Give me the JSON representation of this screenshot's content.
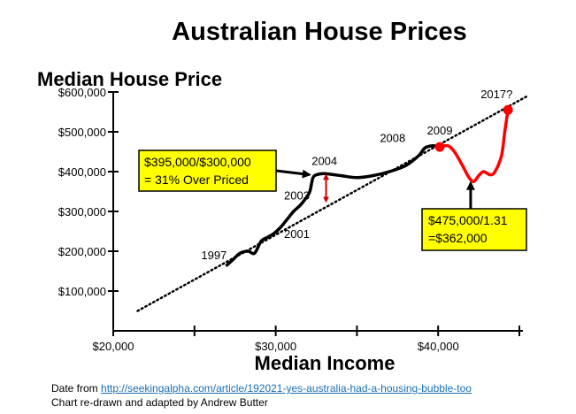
{
  "chart_data": {
    "type": "line",
    "title": "Australian House Prices",
    "ylabel": "Median House Price",
    "xlabel": "Median Income",
    "xlim": [
      20000,
      45000
    ],
    "ylim": [
      0,
      600000
    ],
    "x_ticks": [
      {
        "value": 20000,
        "label": "$20,000"
      },
      {
        "value": 30000,
        "label": "$30,000"
      },
      {
        "value": 40000,
        "label": "$40,000"
      }
    ],
    "y_ticks": [
      {
        "value": 100000,
        "label": "$100,000"
      },
      {
        "value": 200000,
        "label": "$200,000"
      },
      {
        "value": 300000,
        "label": "$300,000"
      },
      {
        "value": 400000,
        "label": "$400,000"
      },
      {
        "value": 500000,
        "label": "$500,000"
      },
      {
        "value": 600000,
        "label": "$600,000"
      }
    ],
    "series": [
      {
        "color": "#000000",
        "points": [
          [
            27000,
            165000
          ],
          [
            27400,
            180000
          ],
          [
            27800,
            195000
          ],
          [
            28300,
            200000
          ],
          [
            28700,
            195000
          ],
          [
            29100,
            225000
          ],
          [
            29500,
            235000
          ],
          [
            29900,
            245000
          ],
          [
            30300,
            260000
          ],
          [
            30700,
            280000
          ],
          [
            31100,
            300000
          ],
          [
            31500,
            315000
          ],
          [
            31800,
            330000
          ],
          [
            32100,
            350000
          ],
          [
            32300,
            385000
          ],
          [
            32600,
            393000
          ],
          [
            33000,
            395000
          ],
          [
            34000,
            390000
          ],
          [
            35000,
            385000
          ],
          [
            36000,
            390000
          ],
          [
            37000,
            400000
          ],
          [
            38000,
            415000
          ],
          [
            38800,
            440000
          ],
          [
            39200,
            460000
          ],
          [
            39700,
            465000
          ],
          [
            40100,
            462000
          ]
        ]
      },
      {
        "color": "#ff0000",
        "points": [
          [
            40100,
            462000
          ],
          [
            40600,
            465000
          ],
          [
            41000,
            450000
          ],
          [
            41500,
            415000
          ],
          [
            41900,
            385000
          ],
          [
            42200,
            375000
          ],
          [
            42500,
            390000
          ],
          [
            42800,
            400000
          ],
          [
            43200,
            392000
          ],
          [
            43500,
            400000
          ],
          [
            43900,
            440000
          ],
          [
            44100,
            500000
          ],
          [
            44300,
            555000
          ]
        ]
      }
    ],
    "trend_line": {
      "style": "dotted",
      "from": [
        21500,
        50000
      ],
      "to": [
        45500,
        590000
      ]
    },
    "highlight_points": [
      {
        "x": 40100,
        "y": 462000,
        "color": "#ff0000"
      },
      {
        "x": 44300,
        "y": 555000,
        "color": "#ff0000"
      }
    ],
    "year_labels": [
      {
        "label": "1997",
        "x": 26200,
        "y": 180000
      },
      {
        "label": "2001",
        "x": 31300,
        "y": 233000
      },
      {
        "label": "2003",
        "x": 31300,
        "y": 330000
      },
      {
        "label": "2004",
        "x": 33000,
        "y": 417000
      },
      {
        "label": "2008",
        "x": 37200,
        "y": 474000
      },
      {
        "label": "2009",
        "x": 40100,
        "y": 493000
      },
      {
        "label": "2017?",
        "x": 43600,
        "y": 585000
      }
    ],
    "gap_arrow": {
      "x": 33100,
      "y_from": 395000,
      "y_to": 315000,
      "color": "#cc0000"
    },
    "annotations": [
      {
        "lines": [
          "$395,000/$300,000",
          "= 31% Over Priced"
        ],
        "box_color": "#ffff00",
        "arrow_to": [
          32300,
          390000
        ]
      },
      {
        "lines": [
          "$475,000/1.31",
          "=$362,000"
        ],
        "box_color": "#ffff00",
        "arrow_to": [
          42000,
          385000
        ]
      }
    ],
    "grid": false,
    "legend": "none"
  },
  "footer": {
    "source_prefix": "Date from ",
    "source_link": "http://seekingalpha.com/article/192021-yes-australia-had-a-housing-bubble-too",
    "credit": "Chart re-drawn and adapted by Andrew Butter"
  }
}
